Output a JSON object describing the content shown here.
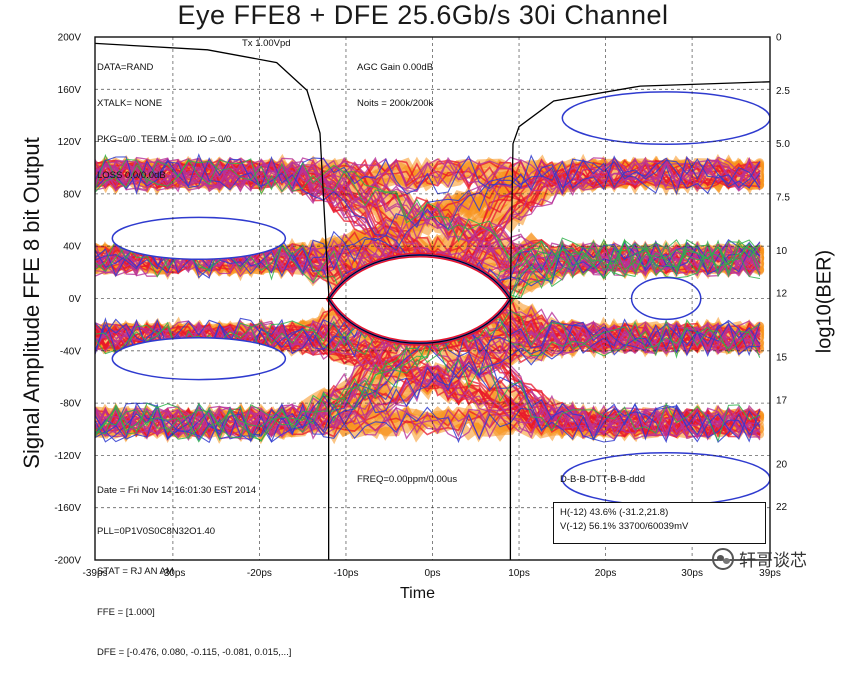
{
  "chart_data": {
    "type": "scatter",
    "title": "Eye FFE8 + DFE 25.6Gb/s 30i Channel",
    "ylabel": "Signal Amplitude FFE 8 bit Output",
    "ylabel_right": "log10(BER)",
    "xlabel": "Time",
    "x_ticks": [
      "-39ps",
      "-30ps",
      "-20ps",
      "-10ps",
      "0ps",
      "10ps",
      "20ps",
      "30ps",
      "39ps"
    ],
    "x_tick_values": [
      -39,
      -30,
      -20,
      -10,
      0,
      10,
      20,
      30,
      39
    ],
    "xlim": [
      -39,
      39
    ],
    "y_ticks": [
      "200V",
      "160V",
      "120V",
      "80V",
      "40V",
      "0V",
      "-40V",
      "-80V",
      "-120V",
      "-160V",
      "-200V"
    ],
    "y_tick_values": [
      200,
      160,
      120,
      80,
      40,
      0,
      -40,
      -80,
      -120,
      -160,
      -200
    ],
    "ylim": [
      -200,
      200
    ],
    "y2_ticks": [
      "0",
      "2.5",
      "5.0",
      "7.5",
      "10",
      "12",
      "15",
      "17",
      "20",
      "22"
    ],
    "y2_tick_values": [
      0,
      2.5,
      5,
      7.5,
      10,
      12,
      15,
      17,
      20,
      22
    ],
    "y2lim": [
      0,
      24.5
    ],
    "grid": "dashed",
    "series": [
      {
        "color": "#f7931e",
        "role": "eye density (orange)"
      },
      {
        "color": "#e8182c",
        "role": "eye density (red)"
      },
      {
        "color": "#b8329a",
        "role": "eye density (magenta)"
      },
      {
        "color": "#2f3bcf",
        "role": "eye contour (blue)"
      },
      {
        "color": "#2db34a",
        "role": "eye contour (green)"
      },
      {
        "color": "#000000",
        "role": "BER bathtub curve"
      }
    ],
    "eye_opening": {
      "horizontal_ps": [
        -12,
        9
      ],
      "vertical_v": [
        -38,
        37
      ]
    },
    "bathtub_left_x": [
      -39,
      -26,
      -18,
      -14.5,
      -13,
      -12
    ],
    "bathtub_left_y": [
      0.3,
      0.6,
      1.2,
      2.5,
      4.5,
      12
    ],
    "bathtub_right_x": [
      9,
      9.3,
      10,
      14,
      24,
      39
    ],
    "bathtub_right_y": [
      12,
      5,
      4.2,
      3,
      2.3,
      2.1
    ],
    "markers": {
      "left_ps": -12,
      "right_ps": 9,
      "cross_x_range": [
        -20,
        20
      ]
    }
  },
  "info_top_left": [
    "DATA=RAND",
    "XTALK= NONE",
    "PKG=0/0  TERM = 0/0  IO = 0/0",
    "LOSS 0.0/0.0dB"
  ],
  "info_tx": "Tx 1.00Vpd",
  "info_agc": [
    "AGC Gain 0.00dB",
    "Noits = 200k/200k"
  ],
  "info_bottom_left": [
    "Date = Fri Nov 14 16:01:30 EST 2014",
    "PLL=0P1V0S0C8N32O1.40",
    "STAT = RJ AN AM",
    "FFE = [1.000]",
    "DFE = [-0.476, 0.080, -0.115, -0.081, 0.015,...]"
  ],
  "info_freq": "FREQ=0.00ppm/0.00us",
  "info_dbr": "D-B-B-DTT-B-B-ddd",
  "measure_lines": [
    "H(-12) 43.6% (-31.2,21.8)",
    "V(-12) 56.1% 33700/60039mV"
  ],
  "watermark_text": "轩哥谈芯"
}
